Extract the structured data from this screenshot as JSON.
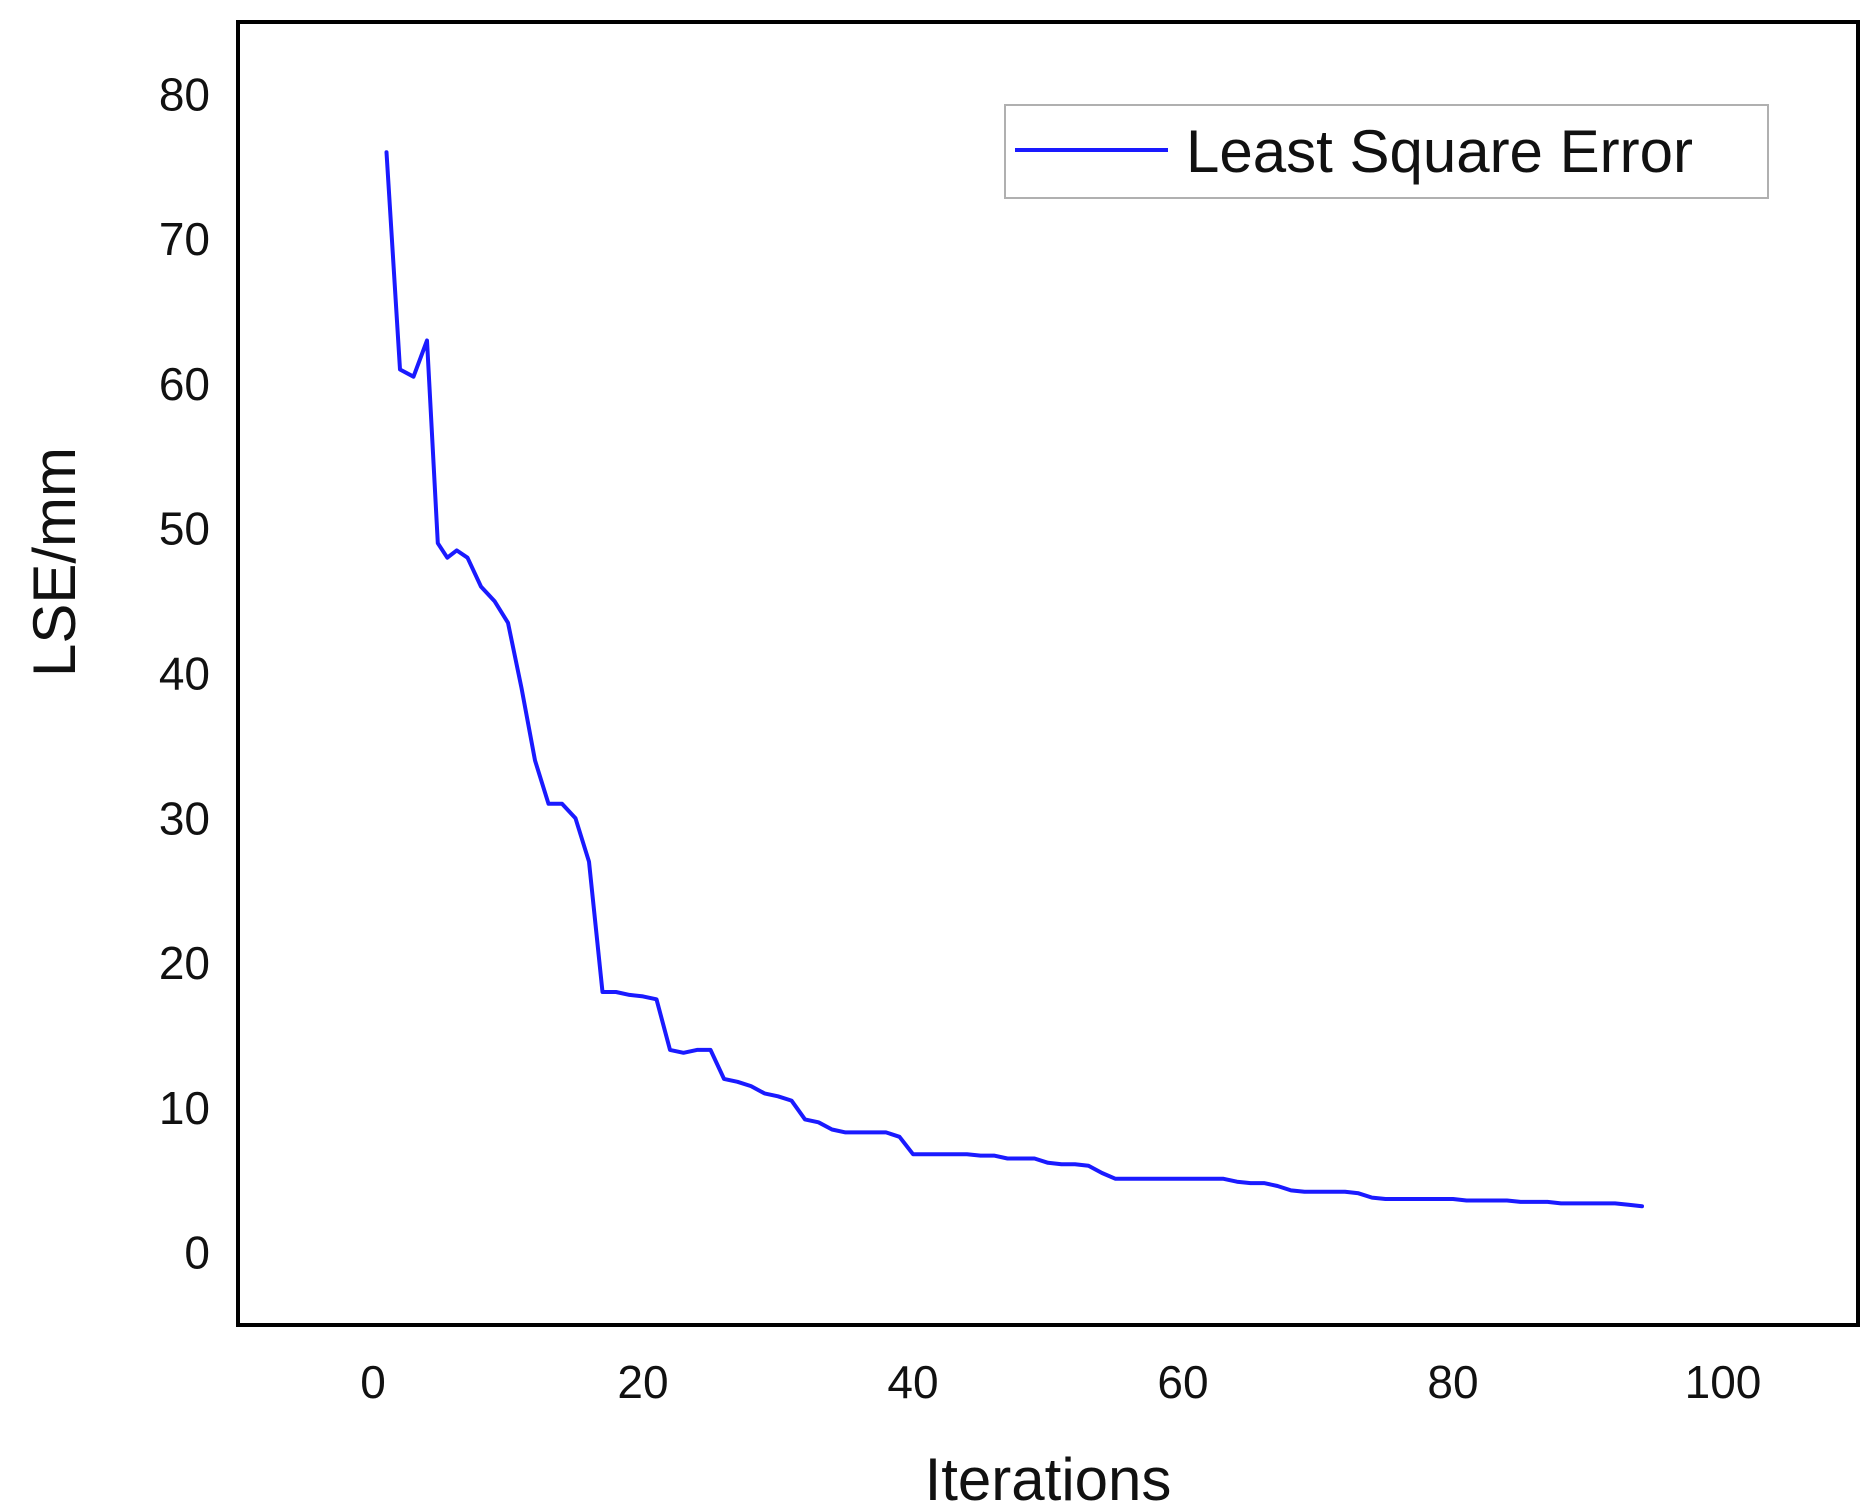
{
  "chart_data": {
    "type": "line",
    "title": "",
    "xlabel": "Iterations",
    "ylabel": "LSE/mm",
    "xlim": [
      -10,
      110
    ],
    "ylim": [
      -5,
      85
    ],
    "xticks": [
      0,
      20,
      40,
      60,
      80,
      100
    ],
    "yticks": [
      0,
      10,
      20,
      30,
      40,
      50,
      60,
      70,
      80
    ],
    "grid": false,
    "legend_position": "top-right",
    "series": [
      {
        "name": "Least Square Error",
        "color": "#1a1aff",
        "x": [
          1,
          2,
          3,
          4,
          4.8,
          5.5,
          6.2,
          7,
          8,
          9,
          10,
          11,
          12,
          13,
          14,
          15,
          16,
          17,
          18,
          19,
          20,
          21,
          22,
          23,
          24,
          25,
          26,
          27,
          28,
          29,
          30,
          31,
          32,
          33,
          34,
          35,
          36,
          37,
          38,
          39,
          40,
          41,
          42,
          43,
          44,
          45,
          46,
          47,
          48,
          49,
          50,
          51,
          52,
          53,
          54,
          55,
          56,
          57,
          58,
          59,
          60,
          61,
          62,
          63,
          64,
          65,
          66,
          67,
          68,
          69,
          70,
          71,
          72,
          73,
          74,
          75,
          76,
          77,
          78,
          79,
          80,
          81,
          82,
          83,
          84,
          85,
          86,
          87,
          88,
          89,
          90,
          91,
          92,
          93,
          94
        ],
        "y": [
          76,
          61,
          60.5,
          63,
          49,
          48,
          48.5,
          48,
          46,
          45,
          43.5,
          39,
          34,
          31,
          31,
          30,
          27,
          18,
          18,
          17.8,
          17.7,
          17.5,
          14,
          13.8,
          14,
          14,
          12,
          11.8,
          11.5,
          11,
          10.8,
          10.5,
          9.2,
          9,
          8.5,
          8.3,
          8.3,
          8.3,
          8.3,
          8,
          6.8,
          6.8,
          6.8,
          6.8,
          6.8,
          6.7,
          6.7,
          6.5,
          6.5,
          6.5,
          6.2,
          6.1,
          6.1,
          6,
          5.5,
          5.1,
          5.1,
          5.1,
          5.1,
          5.1,
          5.1,
          5.1,
          5.1,
          5.1,
          4.9,
          4.8,
          4.8,
          4.6,
          4.3,
          4.2,
          4.2,
          4.2,
          4.2,
          4.1,
          3.8,
          3.7,
          3.7,
          3.7,
          3.7,
          3.7,
          3.7,
          3.6,
          3.6,
          3.6,
          3.6,
          3.5,
          3.5,
          3.5,
          3.4,
          3.4,
          3.4,
          3.4,
          3.4,
          3.3,
          3.2
        ]
      }
    ]
  }
}
